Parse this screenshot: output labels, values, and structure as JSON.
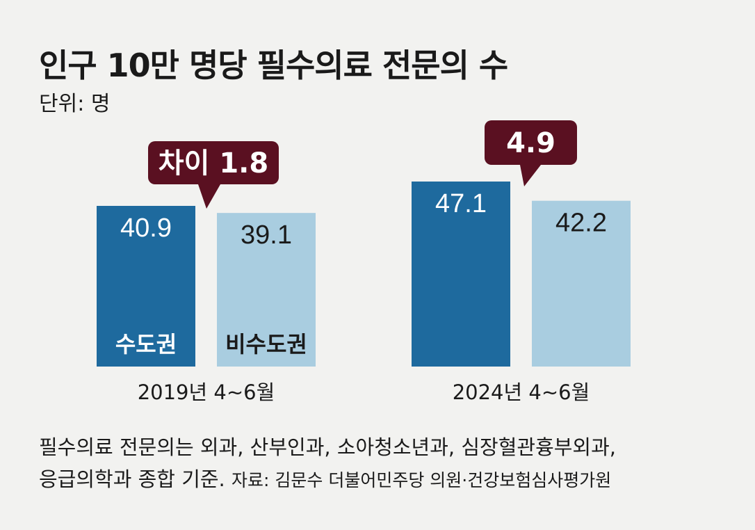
{
  "title": "인구 10만 명당 필수의료 전문의 수",
  "unit": "단위: 명",
  "colors": {
    "capital": "#1e6a9e",
    "non_capital": "#a9cde0",
    "callout": "#5a1021",
    "background": "#f2f2f0"
  },
  "chart_data": {
    "type": "bar",
    "title": "인구 10만 명당 필수의료 전문의 수",
    "ylabel": "단위: 명",
    "ylim": [
      0,
      50
    ],
    "categories": [
      "2019년 4~6월",
      "2024년 4~6월"
    ],
    "series": [
      {
        "name": "수도권",
        "values": [
          40.9,
          47.1
        ],
        "value_labels": [
          "40.9",
          "47.1"
        ]
      },
      {
        "name": "비수도권",
        "values": [
          39.1,
          42.2
        ],
        "value_labels": [
          "39.1",
          "42.2"
        ]
      }
    ],
    "annotations": [
      "차이 1.8",
      "4.9"
    ]
  },
  "footnote": {
    "line1": "필수의료 전문의는 외과, 산부인과, 소아청소년과, 심장혈관흉부외과,",
    "line2": "응급의학과 종합 기준.",
    "source": "자료: 김문수 더불어민주당 의원·건강보험심사평가원"
  }
}
